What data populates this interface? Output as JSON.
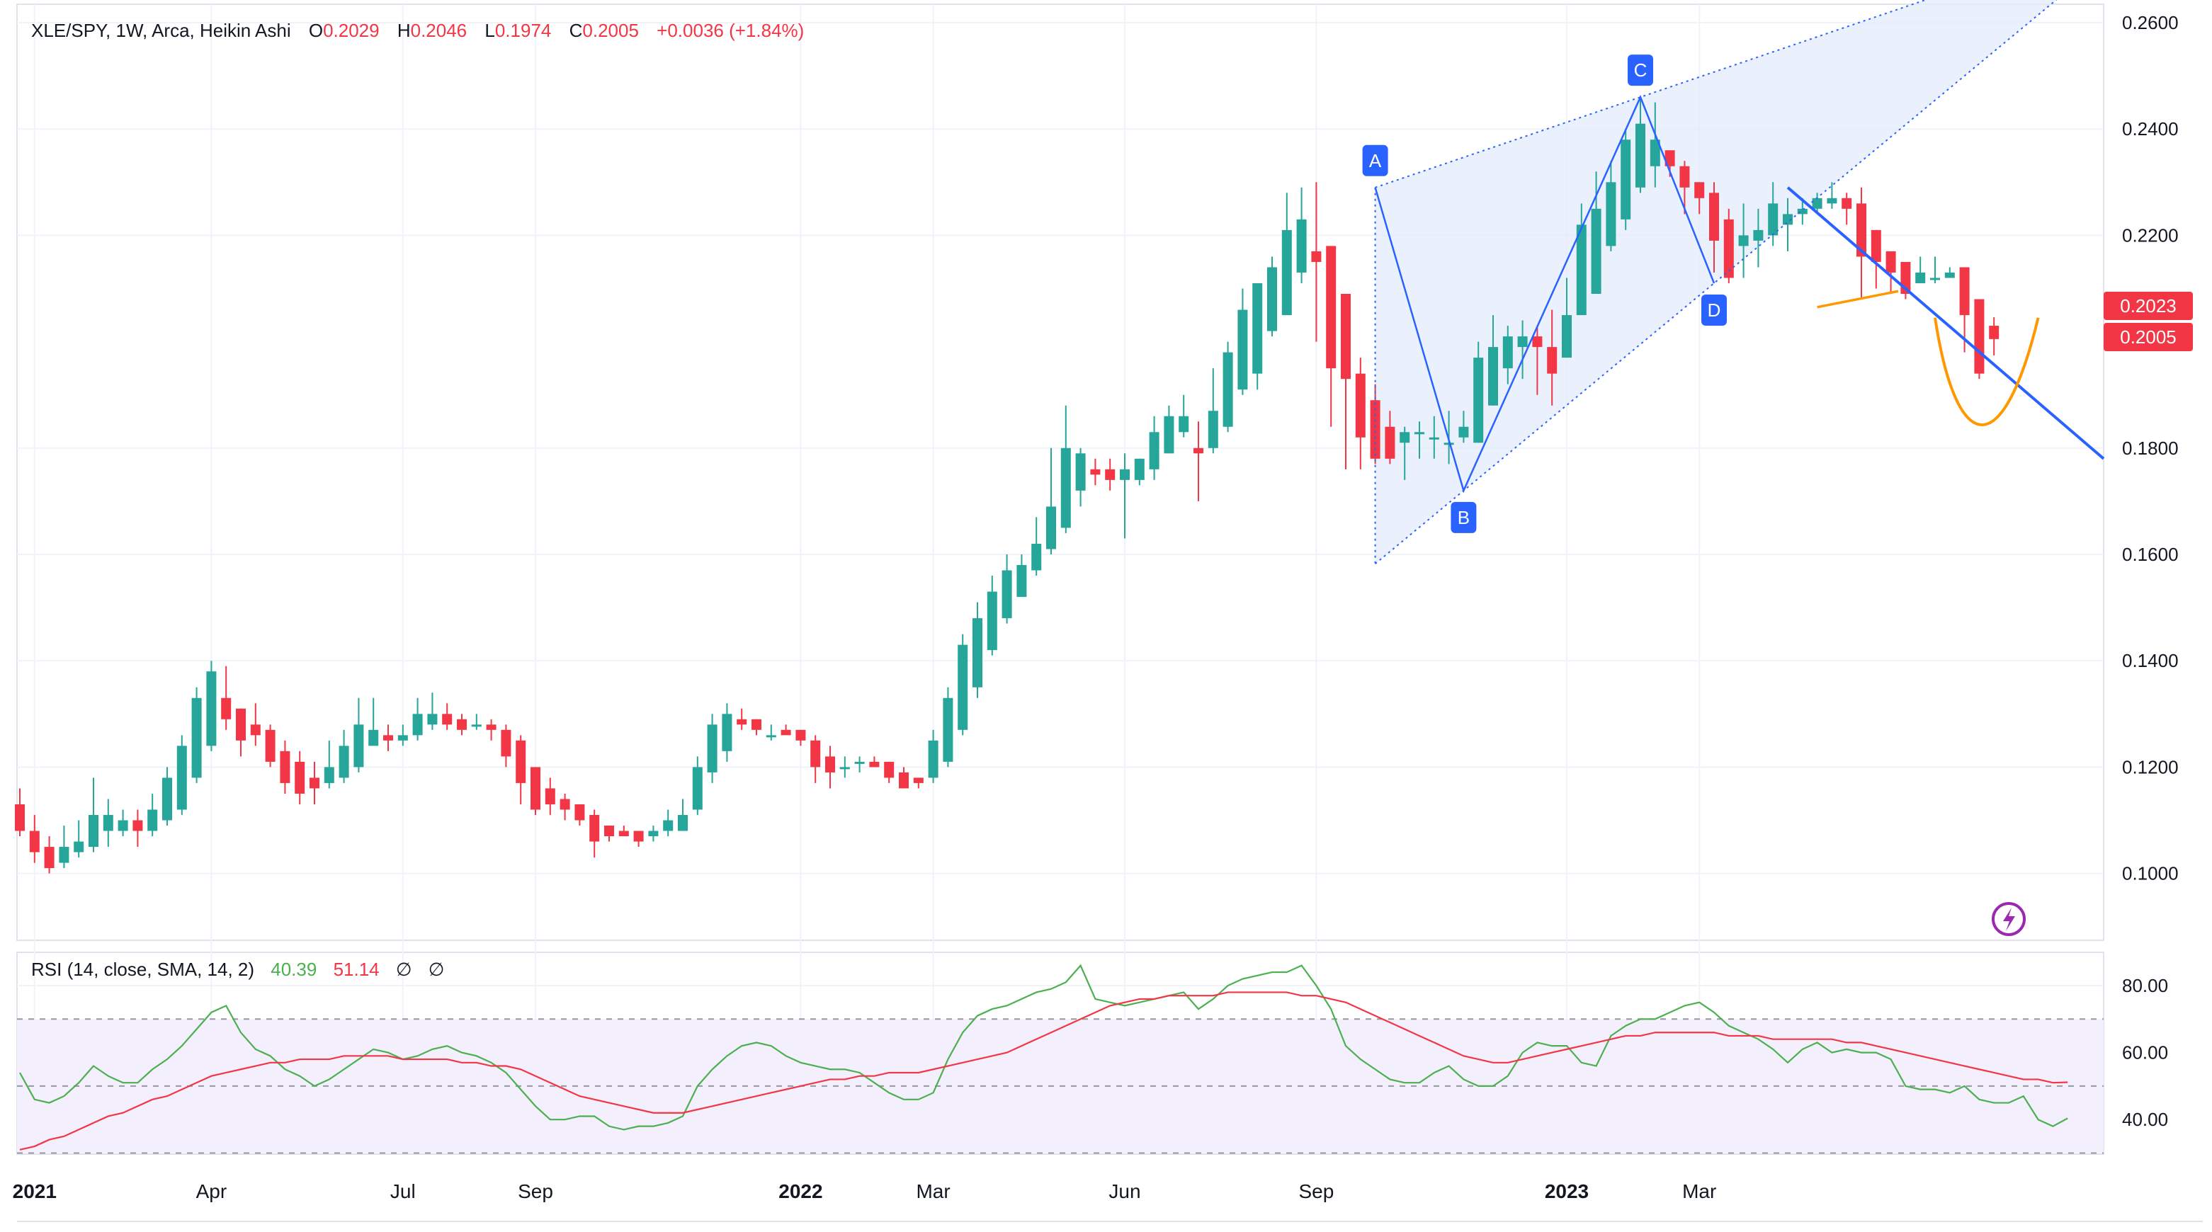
{
  "header": {
    "symbol": "XLE/SPY, 1W, Arca, Heikin Ashi",
    "o_label": "O",
    "o_value": "0.2029",
    "h_label": "H",
    "h_value": "0.2046",
    "l_label": "L",
    "l_value": "0.1974",
    "c_label": "C",
    "c_value": "0.2005",
    "change": "+0.0036 (+1.84%)"
  },
  "rsi_header": {
    "title": "RSI (14, close, SMA, 14, 2)",
    "rsi_value": "40.39",
    "sma_value": "51.14",
    "extra1": "∅",
    "extra2": "∅"
  },
  "colors": {
    "up": "#26a69a",
    "down": "#f23645",
    "rsi_line": "#4caf50",
    "rsi_sma": "#f23645",
    "pattern_line": "#2962ff",
    "pattern_fill": "#e3ebfb",
    "trendline": "#2962ff",
    "orange": "#ff9800",
    "rsi_band": "#f3effc",
    "flash_icon": "#9c27b0"
  },
  "price_badges": [
    "0.2023",
    "0.2005"
  ],
  "flash_icon": "lightning-icon",
  "chart_data": [
    {
      "type": "candlestick",
      "style": "Heikin Ashi",
      "ylim": [
        0.09,
        0.26
      ],
      "y_ticks": [
        "0.2600",
        "0.2400",
        "0.2200",
        "0.1800",
        "0.1600",
        "0.1400",
        "0.1200",
        "0.1000"
      ],
      "x_ticks": [
        {
          "label": "2021",
          "week": 1,
          "bold": true
        },
        {
          "label": "Apr",
          "week": 13,
          "bold": false
        },
        {
          "label": "Jul",
          "week": 26,
          "bold": false
        },
        {
          "label": "Sep",
          "week": 35,
          "bold": false
        },
        {
          "label": "2022",
          "week": 53,
          "bold": true
        },
        {
          "label": "Mar",
          "week": 62,
          "bold": false
        },
        {
          "label": "Jun",
          "week": 75,
          "bold": false
        },
        {
          "label": "Sep",
          "week": 88,
          "bold": false
        },
        {
          "label": "2023",
          "week": 105,
          "bold": true
        },
        {
          "label": "Mar",
          "week": 114,
          "bold": false
        }
      ],
      "candles": [
        [
          0.113,
          0.108,
          0.116,
          0.107
        ],
        [
          0.108,
          0.104,
          0.111,
          0.102
        ],
        [
          0.105,
          0.101,
          0.107,
          0.1
        ],
        [
          0.102,
          0.105,
          0.109,
          0.101
        ],
        [
          0.104,
          0.106,
          0.11,
          0.103
        ],
        [
          0.105,
          0.111,
          0.118,
          0.104
        ],
        [
          0.108,
          0.111,
          0.114,
          0.105
        ],
        [
          0.108,
          0.11,
          0.112,
          0.107
        ],
        [
          0.11,
          0.108,
          0.112,
          0.105
        ],
        [
          0.108,
          0.112,
          0.115,
          0.107
        ],
        [
          0.11,
          0.118,
          0.12,
          0.109
        ],
        [
          0.112,
          0.124,
          0.126,
          0.111
        ],
        [
          0.118,
          0.133,
          0.135,
          0.117
        ],
        [
          0.124,
          0.138,
          0.14,
          0.123
        ],
        [
          0.133,
          0.129,
          0.139,
          0.127
        ],
        [
          0.131,
          0.125,
          0.131,
          0.122
        ],
        [
          0.128,
          0.126,
          0.132,
          0.124
        ],
        [
          0.127,
          0.121,
          0.128,
          0.12
        ],
        [
          0.123,
          0.117,
          0.125,
          0.115
        ],
        [
          0.121,
          0.115,
          0.123,
          0.113
        ],
        [
          0.118,
          0.116,
          0.121,
          0.113
        ],
        [
          0.117,
          0.12,
          0.125,
          0.116
        ],
        [
          0.118,
          0.124,
          0.127,
          0.117
        ],
        [
          0.12,
          0.128,
          0.133,
          0.119
        ],
        [
          0.124,
          0.127,
          0.133,
          0.125
        ],
        [
          0.126,
          0.125,
          0.128,
          0.123
        ],
        [
          0.125,
          0.126,
          0.128,
          0.124
        ],
        [
          0.126,
          0.13,
          0.133,
          0.125
        ],
        [
          0.128,
          0.13,
          0.134,
          0.127
        ],
        [
          0.13,
          0.128,
          0.132,
          0.127
        ],
        [
          0.129,
          0.127,
          0.13,
          0.126
        ],
        [
          0.128,
          0.128,
          0.13,
          0.127
        ],
        [
          0.128,
          0.127,
          0.129,
          0.125
        ],
        [
          0.127,
          0.122,
          0.128,
          0.12
        ],
        [
          0.125,
          0.117,
          0.126,
          0.113
        ],
        [
          0.12,
          0.112,
          0.12,
          0.111
        ],
        [
          0.116,
          0.113,
          0.118,
          0.111
        ],
        [
          0.114,
          0.112,
          0.115,
          0.11
        ],
        [
          0.113,
          0.11,
          0.113,
          0.109
        ],
        [
          0.111,
          0.106,
          0.112,
          0.103
        ],
        [
          0.109,
          0.107,
          0.109,
          0.106
        ],
        [
          0.108,
          0.107,
          0.109,
          0.107
        ],
        [
          0.108,
          0.106,
          0.108,
          0.105
        ],
        [
          0.107,
          0.108,
          0.109,
          0.106
        ],
        [
          0.108,
          0.11,
          0.112,
          0.107
        ],
        [
          0.108,
          0.111,
          0.114,
          0.109
        ],
        [
          0.112,
          0.12,
          0.122,
          0.111
        ],
        [
          0.119,
          0.128,
          0.13,
          0.117
        ],
        [
          0.123,
          0.13,
          0.132,
          0.121
        ],
        [
          0.129,
          0.128,
          0.131,
          0.127
        ],
        [
          0.129,
          0.127,
          0.129,
          0.126
        ],
        [
          0.126,
          0.126,
          0.128,
          0.125
        ],
        [
          0.127,
          0.126,
          0.128,
          0.126
        ],
        [
          0.127,
          0.125,
          0.127,
          0.124
        ],
        [
          0.125,
          0.12,
          0.126,
          0.117
        ],
        [
          0.122,
          0.119,
          0.124,
          0.116
        ],
        [
          0.12,
          0.12,
          0.122,
          0.118
        ],
        [
          0.121,
          0.121,
          0.122,
          0.119
        ],
        [
          0.121,
          0.12,
          0.122,
          0.12
        ],
        [
          0.121,
          0.118,
          0.121,
          0.117
        ],
        [
          0.119,
          0.116,
          0.12,
          0.116
        ],
        [
          0.118,
          0.117,
          0.118,
          0.116
        ],
        [
          0.118,
          0.125,
          0.127,
          0.117
        ],
        [
          0.121,
          0.133,
          0.135,
          0.12
        ],
        [
          0.127,
          0.143,
          0.145,
          0.126
        ],
        [
          0.135,
          0.148,
          0.151,
          0.133
        ],
        [
          0.142,
          0.153,
          0.156,
          0.141
        ],
        [
          0.148,
          0.157,
          0.16,
          0.147
        ],
        [
          0.152,
          0.158,
          0.16,
          0.152
        ],
        [
          0.157,
          0.162,
          0.167,
          0.156
        ],
        [
          0.161,
          0.169,
          0.18,
          0.16
        ],
        [
          0.165,
          0.18,
          0.188,
          0.164
        ],
        [
          0.172,
          0.179,
          0.18,
          0.169
        ],
        [
          0.176,
          0.175,
          0.178,
          0.173
        ],
        [
          0.176,
          0.174,
          0.178,
          0.172
        ],
        [
          0.174,
          0.176,
          0.179,
          0.163
        ],
        [
          0.174,
          0.178,
          0.178,
          0.173
        ],
        [
          0.176,
          0.183,
          0.186,
          0.174
        ],
        [
          0.179,
          0.186,
          0.188,
          0.179
        ],
        [
          0.183,
          0.186,
          0.19,
          0.182
        ],
        [
          0.18,
          0.179,
          0.185,
          0.17
        ],
        [
          0.18,
          0.187,
          0.195,
          0.179
        ],
        [
          0.184,
          0.198,
          0.2,
          0.183
        ],
        [
          0.191,
          0.206,
          0.21,
          0.19
        ],
        [
          0.194,
          0.211,
          0.211,
          0.191
        ],
        [
          0.202,
          0.214,
          0.216,
          0.201
        ],
        [
          0.205,
          0.221,
          0.228,
          0.205
        ],
        [
          0.213,
          0.223,
          0.229,
          0.211
        ],
        [
          0.217,
          0.215,
          0.23,
          0.2
        ],
        [
          0.218,
          0.195,
          0.218,
          0.184
        ],
        [
          0.209,
          0.193,
          0.208,
          0.176
        ],
        [
          0.194,
          0.182,
          0.197,
          0.176
        ],
        [
          0.189,
          0.178,
          0.192,
          0.177
        ],
        [
          0.184,
          0.178,
          0.187,
          0.177
        ],
        [
          0.181,
          0.183,
          0.184,
          0.174
        ],
        [
          0.183,
          0.183,
          0.185,
          0.178
        ],
        [
          0.182,
          0.182,
          0.186,
          0.178
        ],
        [
          0.181,
          0.181,
          0.187,
          0.177
        ],
        [
          0.182,
          0.184,
          0.187,
          0.181
        ],
        [
          0.181,
          0.197,
          0.2,
          0.181
        ],
        [
          0.188,
          0.199,
          0.205,
          0.188
        ],
        [
          0.195,
          0.201,
          0.203,
          0.192
        ],
        [
          0.199,
          0.201,
          0.204,
          0.193
        ],
        [
          0.201,
          0.199,
          0.203,
          0.19
        ],
        [
          0.199,
          0.194,
          0.206,
          0.188
        ],
        [
          0.197,
          0.205,
          0.212,
          0.197
        ],
        [
          0.205,
          0.222,
          0.226,
          0.205
        ],
        [
          0.209,
          0.225,
          0.232,
          0.211
        ],
        [
          0.218,
          0.23,
          0.234,
          0.217
        ],
        [
          0.223,
          0.238,
          0.24,
          0.221
        ],
        [
          0.229,
          0.241,
          0.246,
          0.228
        ],
        [
          0.233,
          0.238,
          0.245,
          0.229
        ],
        [
          0.236,
          0.233,
          0.236,
          0.231
        ],
        [
          0.233,
          0.229,
          0.234,
          0.224
        ],
        [
          0.23,
          0.227,
          0.23,
          0.224
        ],
        [
          0.228,
          0.219,
          0.23,
          0.213
        ],
        [
          0.223,
          0.212,
          0.225,
          0.211
        ],
        [
          0.218,
          0.22,
          0.226,
          0.212
        ],
        [
          0.219,
          0.221,
          0.225,
          0.214
        ],
        [
          0.22,
          0.226,
          0.23,
          0.218
        ],
        [
          0.222,
          0.224,
          0.227,
          0.217
        ],
        [
          0.224,
          0.225,
          0.227,
          0.222
        ],
        [
          0.225,
          0.227,
          0.228,
          0.224
        ],
        [
          0.226,
          0.227,
          0.23,
          0.225
        ],
        [
          0.227,
          0.225,
          0.228,
          0.222
        ],
        [
          0.226,
          0.216,
          0.229,
          0.208
        ],
        [
          0.221,
          0.215,
          0.221,
          0.21
        ],
        [
          0.217,
          0.213,
          0.216,
          0.209
        ],
        [
          0.215,
          0.209,
          0.215,
          0.208
        ],
        [
          0.211,
          0.213,
          0.216,
          0.211
        ],
        [
          0.212,
          0.212,
          0.216,
          0.211
        ],
        [
          0.212,
          0.213,
          0.214,
          0.212
        ],
        [
          0.214,
          0.205,
          0.214,
          0.198
        ],
        [
          0.208,
          0.194,
          0.208,
          0.193
        ],
        [
          0.203,
          0.2005,
          0.2046,
          0.1974
        ]
      ],
      "pattern": {
        "points": [
          {
            "label": "A",
            "week": 92,
            "value": 0.229
          },
          {
            "label": "B",
            "week": 98,
            "value": 0.172
          },
          {
            "label": "C",
            "week": 110,
            "value": 0.246
          },
          {
            "label": "D",
            "week": 115,
            "value": 0.211
          }
        ]
      }
    },
    {
      "type": "line",
      "title": "RSI (14, close, SMA, 14, 2)",
      "ylim": [
        30,
        90
      ],
      "y_ticks": [
        "80.00",
        "60.00",
        "40.00"
      ],
      "bands": [
        70,
        50,
        30
      ],
      "series": [
        {
          "name": "RSI",
          "values": [
            54,
            46,
            45,
            47,
            51,
            56,
            53,
            51,
            51,
            55,
            58,
            62,
            67,
            72,
            74,
            66,
            61,
            59,
            55,
            53,
            50,
            52,
            55,
            58,
            61,
            60,
            58,
            59,
            61,
            62,
            60,
            59,
            57,
            54,
            49,
            44,
            40,
            40,
            41,
            41,
            38,
            37,
            38,
            38,
            39,
            41,
            50,
            55,
            59,
            62,
            63,
            62,
            59,
            57,
            56,
            55,
            55,
            54,
            51,
            48,
            46,
            46,
            48,
            58,
            66,
            71,
            73,
            74,
            76,
            78,
            79,
            81,
            86,
            76,
            75,
            74,
            75,
            76,
            77,
            78,
            73,
            76,
            80,
            82,
            83,
            84,
            84,
            86,
            80,
            73,
            62,
            58,
            55,
            52,
            51,
            51,
            54,
            56,
            52,
            50,
            50,
            53,
            60,
            63,
            62,
            62,
            57,
            56,
            65,
            68,
            70,
            70,
            72,
            74,
            75,
            72,
            68,
            66,
            64,
            61,
            57,
            61,
            63,
            60,
            61,
            60,
            60,
            58,
            50,
            49,
            49,
            48,
            50,
            46,
            45,
            45,
            47,
            40,
            38,
            40.39
          ]
        },
        {
          "name": "SMA",
          "values": [
            31,
            32,
            34,
            35,
            37,
            39,
            41,
            42,
            44,
            46,
            47,
            49,
            51,
            53,
            54,
            55,
            56,
            57,
            57,
            58,
            58,
            58,
            59,
            59,
            59,
            59,
            58,
            58,
            58,
            58,
            57,
            57,
            56,
            56,
            55,
            53,
            51,
            49,
            47,
            46,
            45,
            44,
            43,
            42,
            42,
            42,
            43,
            44,
            45,
            46,
            47,
            48,
            49,
            50,
            51,
            52,
            52,
            53,
            53,
            54,
            54,
            54,
            55,
            56,
            57,
            58,
            59,
            60,
            62,
            64,
            66,
            68,
            70,
            72,
            74,
            75,
            76,
            76,
            77,
            77,
            77,
            77,
            78,
            78,
            78,
            78,
            78,
            77,
            77,
            76,
            75,
            73,
            71,
            69,
            67,
            65,
            63,
            61,
            59,
            58,
            57,
            57,
            58,
            59,
            60,
            61,
            62,
            63,
            64,
            65,
            65,
            66,
            66,
            66,
            66,
            66,
            65,
            65,
            65,
            64,
            64,
            64,
            64,
            64,
            63,
            63,
            62,
            61,
            60,
            59,
            58,
            57,
            56,
            55,
            54,
            53,
            52,
            52,
            51,
            51.14
          ]
        }
      ]
    }
  ]
}
